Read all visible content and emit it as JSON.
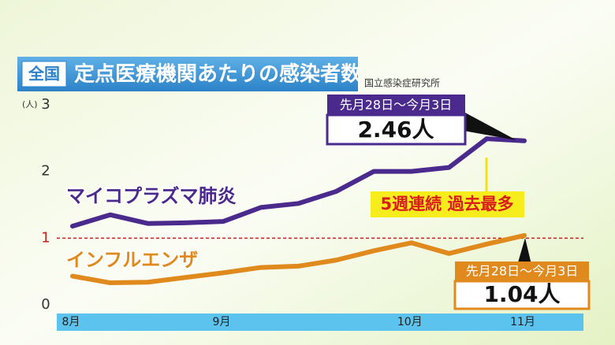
{
  "chart_data": {
    "type": "line",
    "title": "定点医療機関あたりの感染者数",
    "region": "全国",
    "source": "国立感染症研究所",
    "y_unit": "(人)",
    "annotation": "5週連続 過去最多",
    "categories": [
      "8月",
      null,
      null,
      null,
      "9月",
      null,
      null,
      null,
      null,
      "10月",
      null,
      null,
      "11月"
    ],
    "series": [
      {
        "name": "マイコプラズマ肺炎",
        "color": "#4a2a8c",
        "period": "先月28日～今月3日",
        "values": [
          1.18,
          1.35,
          1.22,
          1.23,
          1.25,
          1.46,
          1.52,
          1.7,
          2.0,
          2.0,
          2.06,
          2.49,
          2.46
        ],
        "value_labels": [
          null,
          null,
          null,
          null,
          null,
          null,
          null,
          null,
          null,
          null,
          null,
          null,
          "2.46人"
        ]
      },
      {
        "name": "インフルエンザ",
        "color": "#e0891c",
        "period": "先月28日～今月3日",
        "values": [
          0.43,
          0.33,
          0.34,
          0.41,
          0.48,
          0.56,
          0.58,
          0.67,
          0.81,
          0.93,
          0.77,
          0.91,
          1.04
        ],
        "value_labels": [
          null,
          null,
          null,
          null,
          null,
          null,
          null,
          null,
          null,
          null,
          null,
          null,
          "1.04人"
        ]
      }
    ],
    "ylim": [
      0,
      3
    ],
    "yticks": [
      0,
      1,
      2,
      3
    ],
    "reference_line": 1,
    "reference_color": "#cc1f1f"
  }
}
